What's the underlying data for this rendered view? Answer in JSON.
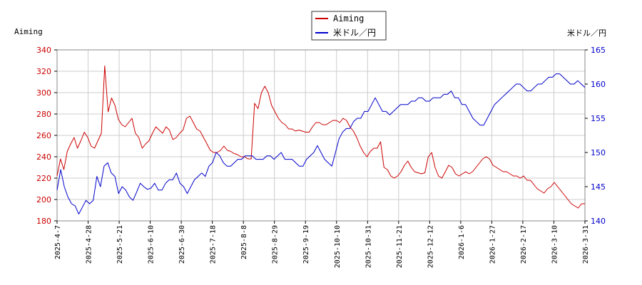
{
  "chart_data": {
    "type": "line",
    "left_axis_label": "Aiming",
    "right_axis_label": "米ドル／円",
    "legend": {
      "placement": "top-center",
      "entries": [
        "Aiming",
        "米ドル／円"
      ]
    },
    "grid": true,
    "x_tick_labels": [
      "2025-4-7",
      "2025-4-28",
      "2025-5-21",
      "2025-6-10",
      "2025-6-30",
      "2025-7-18",
      "2025-8-8",
      "2025-8-29",
      "2025-9-19",
      "2025-10-10",
      "2025-10-31",
      "2025-11-21",
      "2025-12-12",
      "2026-1-6",
      "2026-1-27",
      "2026-2-17",
      "2026-3-10",
      "2026-3-31"
    ],
    "y_left": {
      "min": 180,
      "max": 340,
      "step": 20,
      "ticks": [
        180,
        200,
        220,
        240,
        260,
        280,
        300,
        320,
        340
      ]
    },
    "y_right": {
      "min": 140,
      "max": 165,
      "step": 5,
      "ticks": [
        140,
        145,
        150,
        155,
        160,
        165
      ]
    },
    "colors": {
      "aiming": "#cc0000",
      "usdjpy": "#0000cc",
      "grid": "#cccccc"
    },
    "series": [
      {
        "name": "Aiming",
        "axis": "left",
        "values": [
          222,
          238,
          228,
          245,
          252,
          258,
          248,
          255,
          263,
          258,
          250,
          248,
          255,
          262,
          325,
          282,
          295,
          288,
          275,
          270,
          268,
          272,
          276,
          262,
          258,
          248,
          252,
          255,
          262,
          268,
          265,
          262,
          268,
          265,
          256,
          258,
          262,
          265,
          276,
          278,
          272,
          266,
          264,
          258,
          252,
          246,
          244,
          244,
          246,
          250,
          246,
          245,
          243,
          242,
          240,
          240,
          238,
          238,
          290,
          285,
          300,
          306,
          300,
          288,
          282,
          276,
          272,
          270,
          266,
          266,
          264,
          265,
          264,
          263,
          263,
          268,
          272,
          272,
          270,
          270,
          272,
          274,
          274,
          272,
          276,
          274,
          268,
          264,
          258,
          250,
          244,
          240,
          245,
          248,
          248,
          254,
          230,
          228,
          222,
          220,
          222,
          226,
          232,
          236,
          230,
          226,
          225,
          224,
          225,
          240,
          244,
          230,
          222,
          220,
          226,
          232,
          230,
          224,
          222,
          224,
          226,
          224,
          226,
          230,
          234,
          238,
          240,
          238,
          232,
          230,
          228,
          226,
          226,
          224,
          222,
          222,
          220,
          222,
          218,
          218,
          214,
          210,
          208,
          206,
          210,
          212,
          216,
          212,
          208,
          204,
          200,
          196,
          194,
          192,
          196,
          196
        ]
      },
      {
        "name": "米ドル／円",
        "axis": "right",
        "values": [
          144.5,
          147.5,
          145,
          143.5,
          142.5,
          142.2,
          141,
          142,
          143,
          142.5,
          143,
          146.5,
          145,
          148,
          148.5,
          147,
          146.5,
          144,
          145,
          144.5,
          143.5,
          143,
          144.2,
          145.5,
          145,
          144.6,
          144.8,
          145.5,
          144.5,
          144.5,
          145.5,
          146,
          146,
          147,
          145.5,
          145,
          144,
          145,
          146,
          146.5,
          147,
          146.5,
          148,
          148.5,
          150,
          149.5,
          148.5,
          148,
          148,
          148.5,
          149,
          149,
          149.5,
          149.5,
          149.5,
          149,
          149,
          149,
          149.5,
          149.5,
          149,
          149.5,
          150,
          149,
          149,
          149,
          148.5,
          148,
          148,
          149,
          149.5,
          150,
          151,
          150,
          149,
          148.5,
          148,
          150,
          152,
          153,
          153.5,
          153.5,
          154.5,
          155,
          155,
          156,
          156,
          157,
          158,
          157,
          156,
          156,
          155.5,
          156,
          156.5,
          157,
          157,
          157,
          157.5,
          157.5,
          158,
          158,
          157.5,
          157.5,
          158,
          158,
          158,
          158.5,
          158.5,
          159,
          158,
          158,
          157,
          157,
          156,
          155,
          154.5,
          154,
          154,
          155,
          156,
          157,
          157.5,
          158,
          158.5,
          159,
          159.5,
          160,
          160,
          159.5,
          159,
          159,
          159.5,
          160,
          160,
          160.5,
          161,
          161,
          161.5,
          161.5,
          161,
          160.5,
          160,
          160,
          160.5,
          160,
          159.5
        ]
      }
    ]
  }
}
